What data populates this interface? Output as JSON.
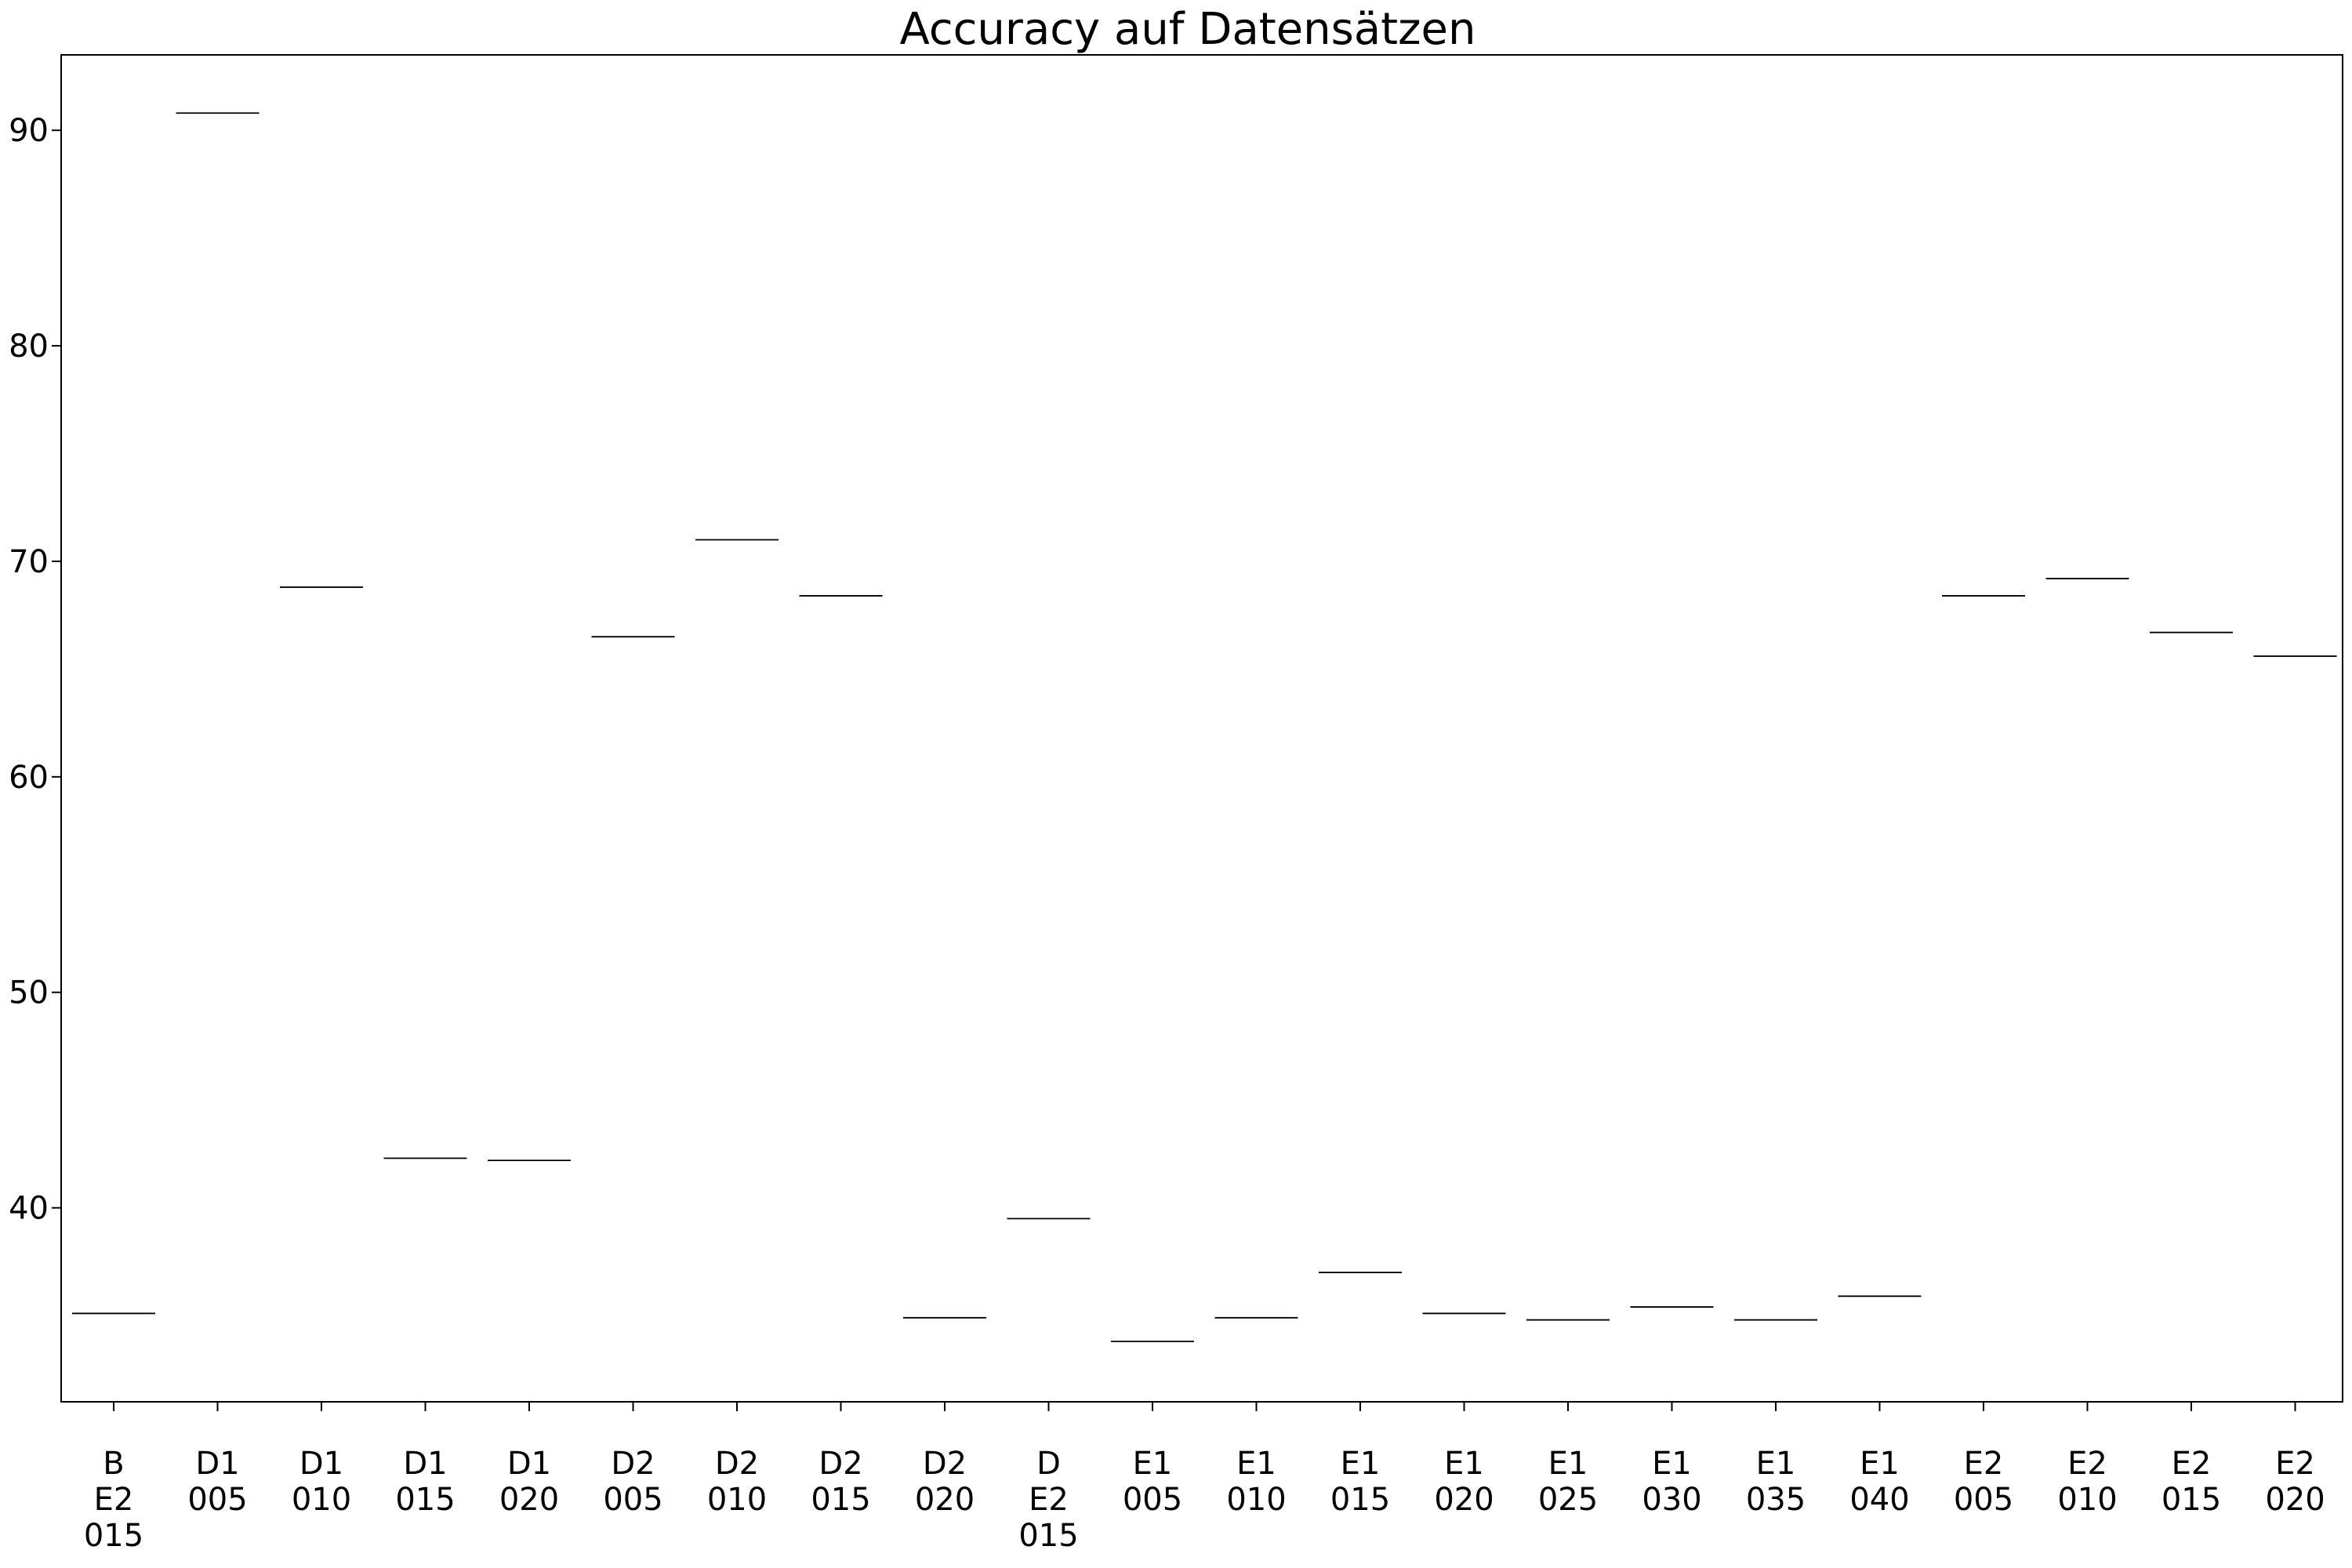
{
  "chart_data": {
    "type": "box",
    "title": "Accuracy auf Datensätzen",
    "xlabel": "",
    "ylabel": "",
    "categories": [
      "B\nE2\n015",
      "D1\n005",
      "D1\n010",
      "D1\n015",
      "D1\n020",
      "D2\n005",
      "D2\n010",
      "D2\n015",
      "D2\n020",
      "D\nE2\n015",
      "E1\n005",
      "E1\n010",
      "E1\n015",
      "E1\n020",
      "E1\n025",
      "E1\n030",
      "E1\n035",
      "E1\n040",
      "E2\n005",
      "E2\n010",
      "E2\n015",
      "E2\n020"
    ],
    "values": [
      35.1,
      90.8,
      68.8,
      42.3,
      42.2,
      66.5,
      71.0,
      68.4,
      34.9,
      39.5,
      33.8,
      34.9,
      37.0,
      35.1,
      34.8,
      35.4,
      34.8,
      35.9,
      68.4,
      69.2,
      66.7,
      65.6
    ],
    "yticks": [
      40,
      50,
      60,
      70,
      80,
      90
    ],
    "ylim": [
      31,
      93.5
    ],
    "grid": false,
    "legend": "none"
  }
}
